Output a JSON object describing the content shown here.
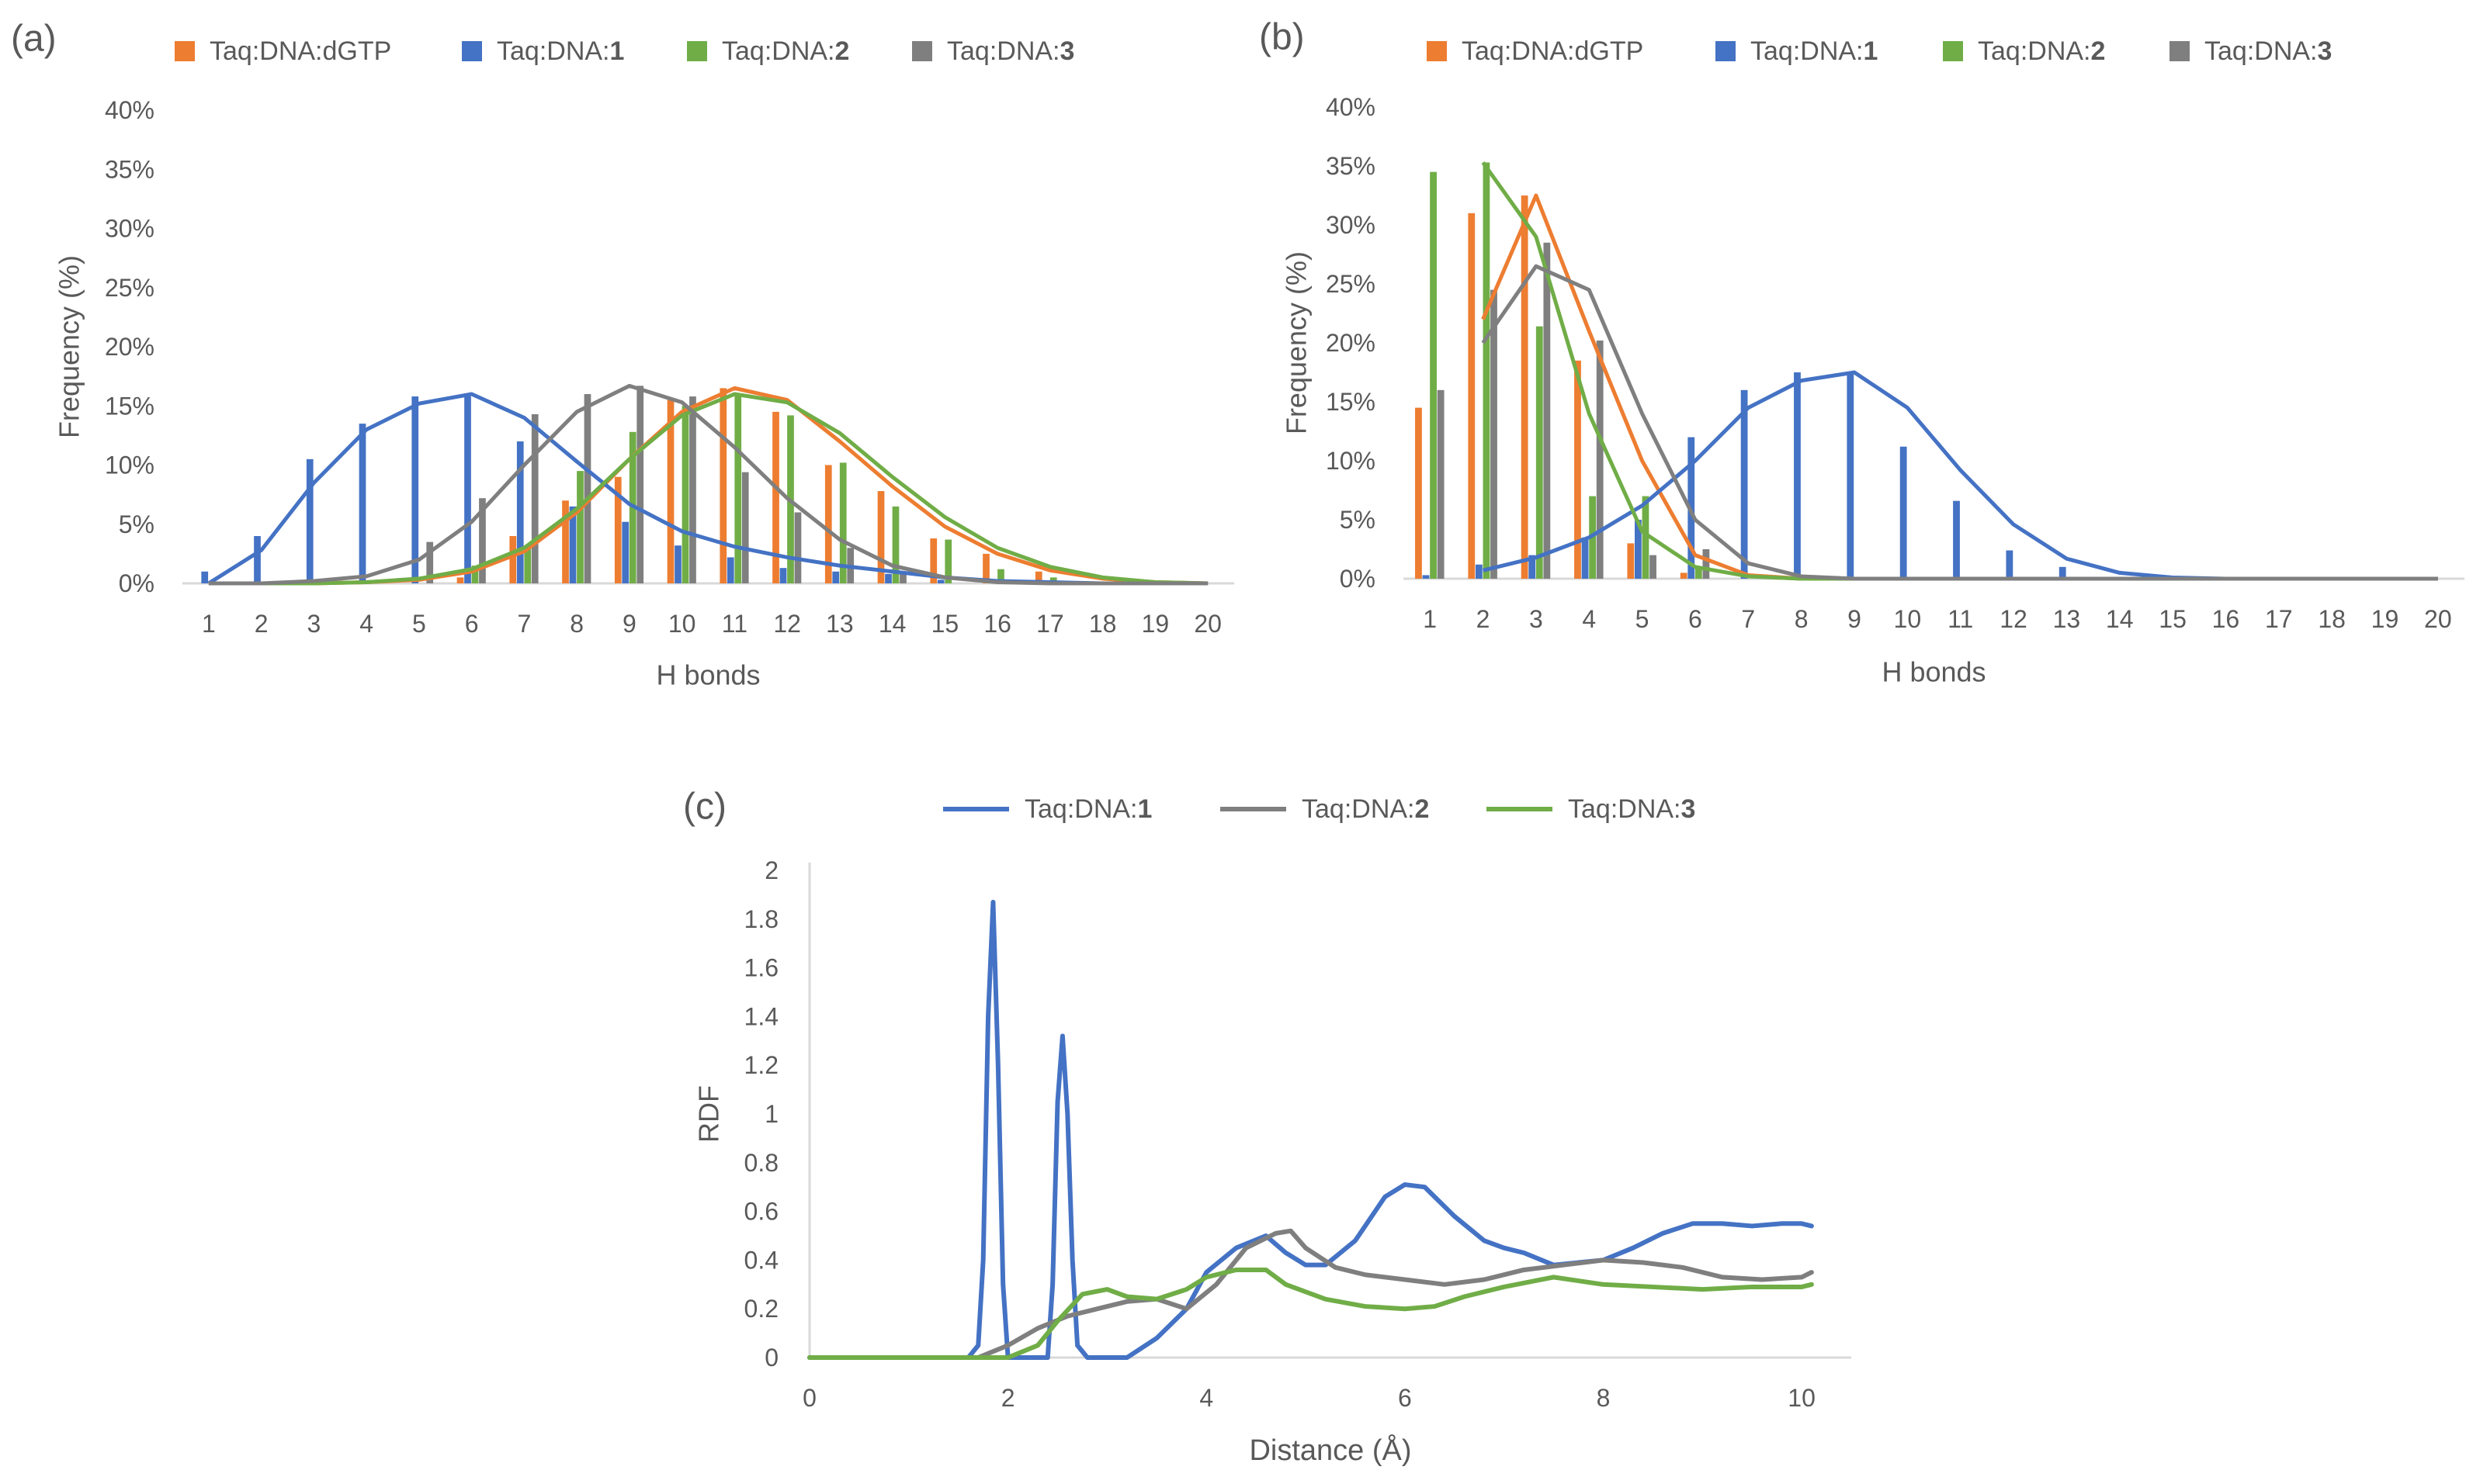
{
  "colors": {
    "dgtp": "#ED7D31",
    "c1": "#4472C4",
    "c2": "#70AD47",
    "c3": "#7F7F7F",
    "axis": "#D9D9D9",
    "text": "#595959"
  },
  "chart_data": [
    {
      "panel_label": "(a)",
      "type": "bar",
      "xlabel": "H bonds",
      "ylabel": "Frequency (%)",
      "ylim": [
        0,
        40
      ],
      "yticks": [
        "0%",
        "5%",
        "10%",
        "15%",
        "20%",
        "25%",
        "30%",
        "35%",
        "40%"
      ],
      "categories": [
        "1",
        "2",
        "3",
        "4",
        "5",
        "6",
        "7",
        "8",
        "9",
        "10",
        "11",
        "12",
        "13",
        "14",
        "15",
        "16",
        "17",
        "18",
        "19",
        "20"
      ],
      "legend_placement": "top",
      "legend": [
        {
          "prefix": "Taq:DNA:",
          "suffix": "dGTP"
        },
        {
          "prefix": "Taq:DNA:",
          "suffix": "1"
        },
        {
          "prefix": "Taq:DNA:",
          "suffix": "2"
        },
        {
          "prefix": "Taq:DNA:",
          "suffix": "3"
        }
      ],
      "series": [
        {
          "name": "Taq:DNA:dGTP",
          "color_key": "dgtp",
          "values": [
            0,
            0,
            0,
            0,
            0,
            0.5,
            4,
            7,
            9,
            15.5,
            16.5,
            14.5,
            10,
            7.8,
            3.8,
            2.5,
            1,
            0,
            0,
            0
          ],
          "fit": [
            0,
            0,
            0,
            0.1,
            0.3,
            1,
            2.7,
            6,
            10.5,
            14.5,
            16.5,
            15.5,
            12,
            8.2,
            4.8,
            2.5,
            1.1,
            0.4,
            0.1,
            0
          ]
        },
        {
          "name": "Taq:DNA:1",
          "color_key": "c1",
          "values": [
            1,
            4,
            10.5,
            13.5,
            15.8,
            15.8,
            12,
            6.5,
            5.2,
            3.2,
            2.2,
            1.3,
            1,
            0.8,
            0.3,
            0.2,
            0,
            0,
            0,
            0
          ],
          "fit": [
            0,
            2.8,
            8.5,
            13,
            15.2,
            16,
            14,
            10.3,
            6.7,
            4.4,
            3.1,
            2.2,
            1.5,
            1,
            0.5,
            0.2,
            0.1,
            0,
            0,
            0
          ]
        },
        {
          "name": "Taq:DNA:2",
          "color_key": "c2",
          "values": [
            0,
            0,
            0,
            0,
            0,
            1.5,
            3,
            9.5,
            12.8,
            15,
            16,
            14.2,
            10.2,
            6.5,
            3.7,
            1.2,
            0.5,
            0,
            0,
            0
          ],
          "fit": [
            0,
            0,
            0,
            0.1,
            0.4,
            1.2,
            3,
            6.3,
            10.5,
            14.2,
            16,
            15.3,
            12.7,
            9,
            5.6,
            3,
            1.4,
            0.5,
            0.1,
            0
          ]
        },
        {
          "name": "Taq:DNA:3",
          "color_key": "c3",
          "values": [
            0,
            0,
            0,
            0,
            3.5,
            7.2,
            14.3,
            16,
            16.7,
            15.8,
            9.4,
            6,
            3,
            1,
            0,
            0,
            0,
            0,
            0,
            0
          ],
          "fit": [
            0,
            0,
            0.2,
            0.6,
            2,
            5.2,
            10,
            14.5,
            16.7,
            15.3,
            11.5,
            7.2,
            3.7,
            1.5,
            0.5,
            0.1,
            0,
            0,
            0,
            0
          ]
        }
      ]
    },
    {
      "panel_label": "(b)",
      "type": "bar",
      "xlabel": "H bonds",
      "ylabel": "Frequency (%)",
      "ylim": [
        0,
        40
      ],
      "yticks": [
        "0%",
        "5%",
        "10%",
        "15%",
        "20%",
        "25%",
        "30%",
        "35%",
        "40%"
      ],
      "categories": [
        "1",
        "2",
        "3",
        "4",
        "5",
        "6",
        "7",
        "8",
        "9",
        "10",
        "11",
        "12",
        "13",
        "14",
        "15",
        "16",
        "17",
        "18",
        "19",
        "20"
      ],
      "legend_placement": "top",
      "legend": [
        {
          "prefix": "Taq:DNA:",
          "suffix": "dGTP"
        },
        {
          "prefix": "Taq:DNA:",
          "suffix": "1"
        },
        {
          "prefix": "Taq:DNA:",
          "suffix": "2"
        },
        {
          "prefix": "Taq:DNA:",
          "suffix": "3"
        }
      ],
      "series": [
        {
          "name": "Taq:DNA:dGTP",
          "color_key": "dgtp",
          "values": [
            14.5,
            31,
            32.5,
            18.5,
            3,
            0.5,
            0,
            0,
            0,
            0,
            0,
            0,
            0,
            0,
            0,
            0,
            0,
            0,
            0,
            0
          ],
          "fit": [
            null,
            22,
            32.5,
            21,
            10,
            2,
            0.3,
            0,
            0,
            0,
            0,
            0,
            0,
            0,
            0,
            0,
            0,
            0,
            0,
            0
          ]
        },
        {
          "name": "Taq:DNA:1",
          "color_key": "c1",
          "values": [
            0.3,
            1.2,
            2,
            3.5,
            5,
            12,
            16,
            17.5,
            17.5,
            11.2,
            6.6,
            2.4,
            1,
            0,
            0,
            0,
            0,
            0,
            0,
            0
          ],
          "fit": [
            null,
            0.7,
            1.8,
            3.5,
            6.2,
            10,
            14.5,
            16.8,
            17.5,
            14.5,
            9.2,
            4.6,
            1.7,
            0.5,
            0.1,
            0,
            0,
            0,
            0,
            0
          ]
        },
        {
          "name": "Taq:DNA:2",
          "color_key": "c2",
          "values": [
            34.5,
            35.3,
            21.4,
            7,
            7,
            1,
            0,
            0,
            0,
            0,
            0,
            0,
            0,
            0,
            0,
            0,
            0,
            0,
            0,
            0
          ],
          "fit": [
            null,
            35.3,
            29,
            14,
            4,
            1,
            0.2,
            0,
            0,
            0,
            0,
            0,
            0,
            0,
            0,
            0,
            0,
            0,
            0,
            0
          ]
        },
        {
          "name": "Taq:DNA:3",
          "color_key": "c3",
          "values": [
            16,
            24.5,
            28.5,
            20.2,
            2,
            2.5,
            0,
            0,
            0,
            0,
            0,
            0,
            0,
            0,
            0,
            0,
            0,
            0,
            0,
            0
          ],
          "fit": [
            null,
            20,
            26.5,
            24.5,
            14,
            5,
            1.3,
            0.2,
            0,
            0,
            0,
            0,
            0,
            0,
            0,
            0,
            0,
            0,
            0,
            0
          ]
        }
      ]
    },
    {
      "panel_label": "(c)",
      "type": "line",
      "xlabel": "Distance (Å)",
      "ylabel": "RDF",
      "xlim": [
        0,
        10.5
      ],
      "ylim": [
        0,
        2
      ],
      "xticks": [
        0,
        2,
        4,
        6,
        8,
        10
      ],
      "yticks": [
        "0",
        "0.2",
        "0.4",
        "0.6",
        "0.8",
        "1",
        "1.2",
        "1.4",
        "1.6",
        "1.8",
        "2"
      ],
      "legend_placement": "top",
      "legend": [
        {
          "prefix": "Taq:DNA:",
          "suffix": "1"
        },
        {
          "prefix": "Taq:DNA:",
          "suffix": "2"
        },
        {
          "prefix": "Taq:DNA:",
          "suffix": "3"
        }
      ],
      "series": [
        {
          "name": "Taq:DNA:1",
          "color_key": "c1",
          "points": [
            [
              0,
              0
            ],
            [
              1.6,
              0
            ],
            [
              1.7,
              0.05
            ],
            [
              1.75,
              0.4
            ],
            [
              1.8,
              1.4
            ],
            [
              1.85,
              1.87
            ],
            [
              1.9,
              1.2
            ],
            [
              1.95,
              0.3
            ],
            [
              2.0,
              0
            ],
            [
              2.4,
              0
            ],
            [
              2.45,
              0.3
            ],
            [
              2.5,
              1.05
            ],
            [
              2.55,
              1.32
            ],
            [
              2.6,
              1.0
            ],
            [
              2.65,
              0.4
            ],
            [
              2.7,
              0.05
            ],
            [
              2.8,
              0
            ],
            [
              3.2,
              0
            ],
            [
              3.5,
              0.08
            ],
            [
              3.8,
              0.2
            ],
            [
              4.0,
              0.35
            ],
            [
              4.3,
              0.45
            ],
            [
              4.6,
              0.5
            ],
            [
              4.8,
              0.43
            ],
            [
              5.0,
              0.38
            ],
            [
              5.2,
              0.38
            ],
            [
              5.5,
              0.48
            ],
            [
              5.8,
              0.66
            ],
            [
              6.0,
              0.71
            ],
            [
              6.2,
              0.7
            ],
            [
              6.5,
              0.58
            ],
            [
              6.8,
              0.48
            ],
            [
              7.0,
              0.45
            ],
            [
              7.2,
              0.43
            ],
            [
              7.5,
              0.38
            ],
            [
              8.0,
              0.4
            ],
            [
              8.3,
              0.45
            ],
            [
              8.6,
              0.51
            ],
            [
              8.9,
              0.55
            ],
            [
              9.2,
              0.55
            ],
            [
              9.5,
              0.54
            ],
            [
              9.8,
              0.55
            ],
            [
              10.0,
              0.55
            ],
            [
              10.1,
              0.54
            ]
          ]
        },
        {
          "name": "Taq:DNA:2",
          "color_key": "c2_line",
          "points": [
            [
              0,
              0
            ],
            [
              1.7,
              0
            ],
            [
              2.0,
              0.05
            ],
            [
              2.3,
              0.12
            ],
            [
              2.6,
              0.17
            ],
            [
              2.9,
              0.2
            ],
            [
              3.2,
              0.23
            ],
            [
              3.5,
              0.24
            ],
            [
              3.8,
              0.2
            ],
            [
              4.1,
              0.3
            ],
            [
              4.4,
              0.45
            ],
            [
              4.7,
              0.51
            ],
            [
              4.85,
              0.52
            ],
            [
              5.0,
              0.45
            ],
            [
              5.3,
              0.37
            ],
            [
              5.6,
              0.34
            ],
            [
              6.0,
              0.32
            ],
            [
              6.4,
              0.3
            ],
            [
              6.8,
              0.32
            ],
            [
              7.2,
              0.36
            ],
            [
              7.6,
              0.38
            ],
            [
              8.0,
              0.4
            ],
            [
              8.4,
              0.39
            ],
            [
              8.8,
              0.37
            ],
            [
              9.2,
              0.33
            ],
            [
              9.6,
              0.32
            ],
            [
              10.0,
              0.33
            ],
            [
              10.1,
              0.35
            ]
          ]
        },
        {
          "name": "Taq:DNA:3",
          "color_key": "c3_line",
          "points": [
            [
              0,
              0
            ],
            [
              2.0,
              0
            ],
            [
              2.3,
              0.05
            ],
            [
              2.5,
              0.15
            ],
            [
              2.75,
              0.26
            ],
            [
              3.0,
              0.28
            ],
            [
              3.2,
              0.25
            ],
            [
              3.5,
              0.24
            ],
            [
              3.8,
              0.28
            ],
            [
              4.0,
              0.33
            ],
            [
              4.3,
              0.36
            ],
            [
              4.6,
              0.36
            ],
            [
              4.8,
              0.3
            ],
            [
              5.2,
              0.24
            ],
            [
              5.6,
              0.21
            ],
            [
              6.0,
              0.2
            ],
            [
              6.3,
              0.21
            ],
            [
              6.6,
              0.25
            ],
            [
              7.0,
              0.29
            ],
            [
              7.5,
              0.33
            ],
            [
              8.0,
              0.3
            ],
            [
              8.5,
              0.29
            ],
            [
              9.0,
              0.28
            ],
            [
              9.5,
              0.29
            ],
            [
              10.0,
              0.29
            ],
            [
              10.1,
              0.3
            ]
          ]
        }
      ]
    }
  ]
}
